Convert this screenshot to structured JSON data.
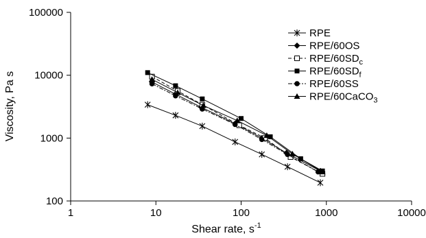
{
  "chart_data": {
    "type": "line",
    "title": "",
    "xlabel": "Shear rate, s",
    "xlabel_sup": "-1",
    "ylabel": "Viscosity, Pa s",
    "x_scale": "log",
    "y_scale": "log",
    "xlim": [
      1,
      10000
    ],
    "ylim": [
      100,
      100000
    ],
    "x_ticks": [
      1,
      10,
      100,
      1000,
      10000
    ],
    "x_tick_labels": [
      "1",
      "10",
      "100",
      "1000",
      "10000"
    ],
    "y_ticks": [
      100,
      1000,
      10000,
      100000
    ],
    "y_tick_labels": [
      "100",
      "1000",
      "10000",
      "100000"
    ],
    "grid": false,
    "legend_position": "top-right",
    "series": [
      {
        "name": "RPE",
        "label_main": "RPE",
        "label_sub": "",
        "label_rest": "",
        "marker": "asterisk",
        "line": "solid",
        "x": [
          8,
          17,
          35,
          85,
          175,
          350,
          850
        ],
        "y": [
          3400,
          2300,
          1550,
          870,
          550,
          350,
          195
        ]
      },
      {
        "name": "RPE/60OS",
        "label_main": "RPE/60OS",
        "label_sub": "",
        "label_rest": "",
        "marker": "diamond",
        "line": "solid",
        "x": [
          9,
          17,
          34,
          85,
          175,
          340,
          850
        ],
        "y": [
          7800,
          5000,
          3100,
          1700,
          1000,
          580,
          300
        ]
      },
      {
        "name": "RPE/60SDc",
        "label_main": "RPE/60SD",
        "label_sub": "c",
        "label_rest": "",
        "marker": "square-open",
        "line": "dashed",
        "x": [
          9,
          18,
          35,
          95,
          190,
          380,
          900
        ],
        "y": [
          9500,
          5600,
          3400,
          1600,
          1000,
          500,
          270
        ]
      },
      {
        "name": "RPE/60SDf",
        "label_main": "RPE/60SD",
        "label_sub": "f",
        "label_rest": "",
        "marker": "square",
        "line": "solid",
        "x": [
          8,
          17,
          35,
          100,
          220,
          500,
          900
        ],
        "y": [
          11000,
          6800,
          4200,
          2050,
          1050,
          470,
          300
        ]
      },
      {
        "name": "RPE/60SS",
        "label_main": "RPE/60SS",
        "label_sub": "",
        "label_rest": "",
        "marker": "circle",
        "line": "dash-dot",
        "x": [
          9,
          17,
          35,
          85,
          175,
          350,
          800
        ],
        "y": [
          7300,
          4700,
          2900,
          1650,
          950,
          550,
          290
        ]
      },
      {
        "name": "RPE/60CaCO3",
        "label_main": "RPE/60CaCO",
        "label_sub": "3",
        "label_rest": "",
        "marker": "triangle",
        "line": "solid",
        "x": [
          9,
          18,
          36,
          90,
          200,
          400,
          900
        ],
        "y": [
          8600,
          5300,
          3300,
          1900,
          1100,
          560,
          290
        ]
      }
    ]
  }
}
